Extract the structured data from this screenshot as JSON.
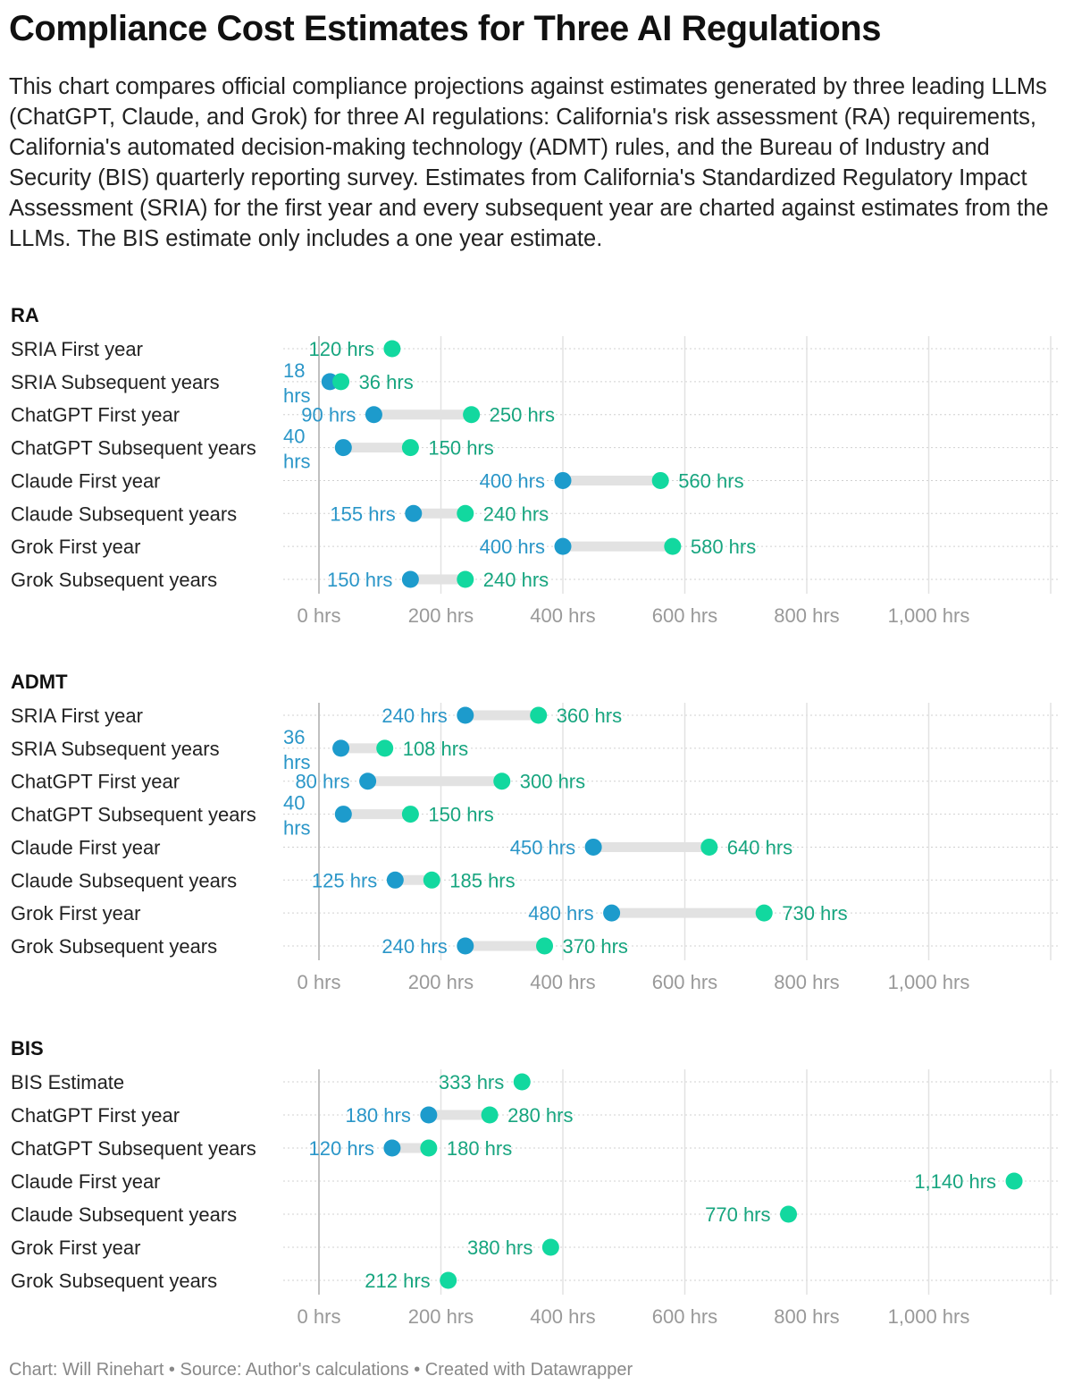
{
  "title": "Compliance Cost Estimates for Three AI Regulations",
  "description": "This chart compares official compliance projections against estimates generated by three leading LLMs (ChatGPT, Claude, and Grok) for three AI regulations: California's risk assessment (RA) requirements, California's automated decision-making technology (ADMT) rules, and the Bureau of Industry and Security (BIS) quarterly reporting survey. Estimates from California's Standardized Regulatory Impact Assessment (SRIA) for the first year and every subsequent year are charted against estimates from the LLMs. The BIS estimate only includes a one year estimate.",
  "footer": "Chart: Will Rinehart • Source: Author's calculations • Created with Datawrapper",
  "colors": {
    "low": "#1d9bcc",
    "high": "#12d89f",
    "low_text": "#2a96c8",
    "high_text": "#17a57f",
    "bar": "#e2e2e2"
  },
  "chart_data": [
    {
      "type": "dot-range",
      "title": "RA",
      "unit": "hrs",
      "xlim": [
        0,
        1200
      ],
      "ticks": [
        0,
        200,
        400,
        600,
        800,
        1000
      ],
      "tick_labels": [
        "0 hrs",
        "200 hrs",
        "400 hrs",
        "600 hrs",
        "800 hrs",
        "1,000 hrs"
      ],
      "rows": [
        {
          "label": "SRIA First year",
          "low": null,
          "high": 120
        },
        {
          "label": "SRIA Subsequent years",
          "low": 18,
          "high": 36
        },
        {
          "label": "ChatGPT First year",
          "low": 90,
          "high": 250
        },
        {
          "label": "ChatGPT Subsequent years",
          "low": 40,
          "high": 150
        },
        {
          "label": "Claude First year",
          "low": 400,
          "high": 560
        },
        {
          "label": "Claude Subsequent years",
          "low": 155,
          "high": 240
        },
        {
          "label": "Grok First year",
          "low": 400,
          "high": 580
        },
        {
          "label": "Grok Subsequent years",
          "low": 150,
          "high": 240
        }
      ]
    },
    {
      "type": "dot-range",
      "title": "ADMT",
      "unit": "hrs",
      "xlim": [
        0,
        1200
      ],
      "ticks": [
        0,
        200,
        400,
        600,
        800,
        1000
      ],
      "tick_labels": [
        "0 hrs",
        "200 hrs",
        "400 hrs",
        "600 hrs",
        "800 hrs",
        "1,000 hrs"
      ],
      "rows": [
        {
          "label": "SRIA First year",
          "low": 240,
          "high": 360
        },
        {
          "label": "SRIA Subsequent years",
          "low": 36,
          "high": 108
        },
        {
          "label": "ChatGPT First year",
          "low": 80,
          "high": 300
        },
        {
          "label": "ChatGPT Subsequent years",
          "low": 40,
          "high": 150
        },
        {
          "label": "Claude First year",
          "low": 450,
          "high": 640
        },
        {
          "label": "Claude Subsequent years",
          "low": 125,
          "high": 185
        },
        {
          "label": "Grok First year",
          "low": 480,
          "high": 730
        },
        {
          "label": "Grok Subsequent years",
          "low": 240,
          "high": 370
        }
      ]
    },
    {
      "type": "dot-range",
      "title": "BIS",
      "unit": "hrs",
      "xlim": [
        0,
        1200
      ],
      "ticks": [
        0,
        200,
        400,
        600,
        800,
        1000
      ],
      "tick_labels": [
        "0 hrs",
        "200 hrs",
        "400 hrs",
        "600 hrs",
        "800 hrs",
        "1,000 hrs"
      ],
      "rows": [
        {
          "label": "BIS Estimate",
          "low": null,
          "high": 333
        },
        {
          "label": "ChatGPT First year",
          "low": 180,
          "high": 280
        },
        {
          "label": "ChatGPT Subsequent years",
          "low": 120,
          "high": 180
        },
        {
          "label": "Claude First year",
          "low": null,
          "high": 1140
        },
        {
          "label": "Claude Subsequent years",
          "low": null,
          "high": 770
        },
        {
          "label": "Grok First year",
          "low": null,
          "high": 380
        },
        {
          "label": "Grok Subsequent years",
          "low": null,
          "high": 212
        }
      ]
    }
  ]
}
